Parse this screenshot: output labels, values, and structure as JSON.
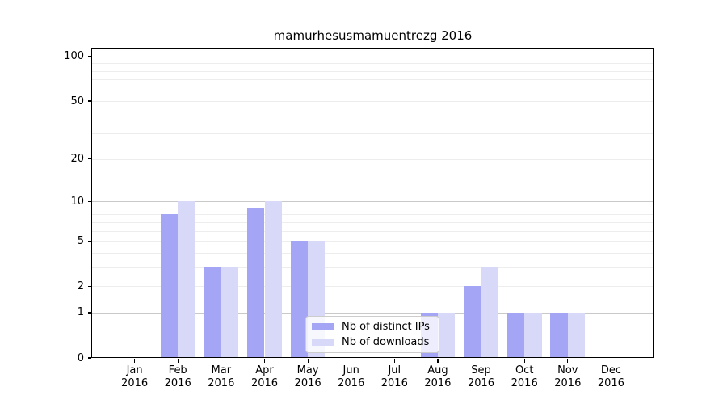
{
  "chart_data": {
    "type": "bar",
    "title": "mamurhesusmamuentrezg 2016",
    "year_label": "2016",
    "categories": [
      "Jan",
      "Feb",
      "Mar",
      "Apr",
      "May",
      "Jun",
      "Jul",
      "Aug",
      "Sep",
      "Oct",
      "Nov",
      "Dec"
    ],
    "series": [
      {
        "name": "Nb of distinct IPs",
        "color": "#a5a5f5",
        "values": [
          0,
          8,
          3,
          9,
          5,
          0,
          0,
          1,
          2,
          1,
          1,
          0
        ]
      },
      {
        "name": "Nb of downloads",
        "color": "#d8d8f8",
        "values": [
          0,
          10,
          3,
          10,
          5,
          0,
          0,
          1,
          3,
          1,
          1,
          0
        ]
      }
    ],
    "xlabel": "",
    "ylabel": "",
    "scale": "log1p",
    "ylim": [
      0,
      113
    ],
    "y_tick_labels": [
      100,
      50,
      20,
      10,
      5,
      2,
      1,
      0
    ],
    "minor_grid_values": [
      2,
      3,
      4,
      5,
      6,
      7,
      8,
      9,
      20,
      30,
      40,
      50,
      60,
      70,
      80,
      90
    ],
    "major_grid_values": [
      1,
      10,
      100
    ],
    "grid": true,
    "legend_position": "lower-center-inside"
  },
  "colors": {
    "background": "#ffffff",
    "axis": "#000000",
    "text": "#000000",
    "minor_grid": "#ededed",
    "major_grid": "#c9c9c9",
    "legend_border": "#cccccc",
    "legend_background": "rgba(255,255,255,0.8)"
  }
}
